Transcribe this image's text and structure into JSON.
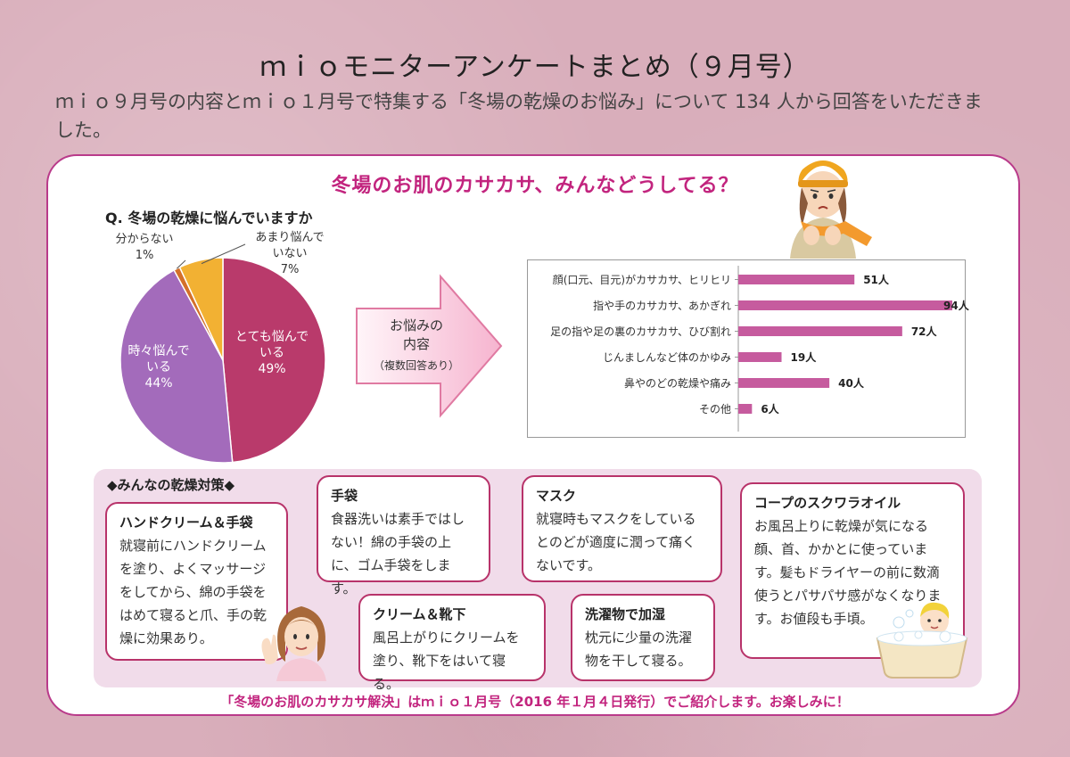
{
  "title": "ｍｉｏモニターアンケートまとめ（９月号）",
  "intro": "ｍｉｏ９月号の内容とｍｉｏ１月号で特集する「冬場の乾燥のお悩み」について 134 人から回答をいただきました。",
  "section_heading": "冬場のお肌のカサカサ、みんなどうしてる？",
  "question": "Q. 冬場の乾燥に悩んでいますか",
  "arrow": {
    "line1": "お悩みの",
    "line2": "内容",
    "sub": "（複数回答あり）"
  },
  "tips_heading": "◆みんなの乾燥対策◆",
  "tips": [
    {
      "title": "ハンドクリーム＆手袋",
      "body": "就寝前にハンドクリームを塗り、よくマッサージをしてから、綿の手袋をはめて寝ると爪、手の乾燥に効果あり。"
    },
    {
      "title": "手袋",
      "body": "食器洗いは素手ではしない！綿の手袋の上に、ゴム手袋をします。"
    },
    {
      "title": "マスク",
      "body": "就寝時もマスクをしているとのどが適度に潤って痛くないです。"
    },
    {
      "title": "コープのスクワラオイル",
      "body": "お風呂上りに乾燥が気になる顔、首、かかとに使っています。髪もドライヤーの前に数滴使うとパサパサ感がなくなります。お値段も手頃。"
    },
    {
      "title": "クリーム＆靴下",
      "body": "風呂上がりにクリームを塗り、靴下をはいて寝る。"
    },
    {
      "title": "洗濯物で加湿",
      "body": "枕元に少量の洗濯物を干して寝る。"
    }
  ],
  "footer": "「冬場のお肌のカサカサ解決」はｍｉｏ１月号（2016 年１月４日発行）でご紹介します。お楽しみに！",
  "colors": {
    "accent": "#c2247e",
    "pie_very": "#b93a6b",
    "pie_sometimes": "#a36bbb",
    "pie_unknown": "#d4702a",
    "pie_notmuch": "#f2b133",
    "bar": "#c65b9e"
  },
  "chart_data": [
    {
      "type": "pie",
      "title": "Q. 冬場の乾燥に悩んでいますか",
      "slices": [
        {
          "label": "とても悩んでいる",
          "value": 49,
          "display": "49%",
          "color": "#b93a6b"
        },
        {
          "label": "時々悩んでいる",
          "value": 44,
          "display": "44%",
          "color": "#a36bbb"
        },
        {
          "label": "分からない",
          "value": 1,
          "display": "1%",
          "color": "#d4702a"
        },
        {
          "label": "あまり悩んでいない",
          "value": 7,
          "display": "7%",
          "color": "#f2b133"
        }
      ]
    },
    {
      "type": "bar",
      "orientation": "horizontal",
      "categories": [
        "顔(口元、目元)がカサカサ、ヒリヒリ",
        "指や手のカサカサ、あかぎれ",
        "足の指や足の裏のカサカサ、ひび割れ",
        "じんましんなど体のかゆみ",
        "鼻やのどの乾燥や痛み",
        "その他"
      ],
      "values": [
        51,
        94,
        72,
        19,
        40,
        6
      ],
      "value_labels": [
        "51人",
        "94人",
        "72人",
        "19人",
        "40人",
        "6人"
      ],
      "xlim": [
        0,
        94
      ],
      "grid": false
    }
  ]
}
